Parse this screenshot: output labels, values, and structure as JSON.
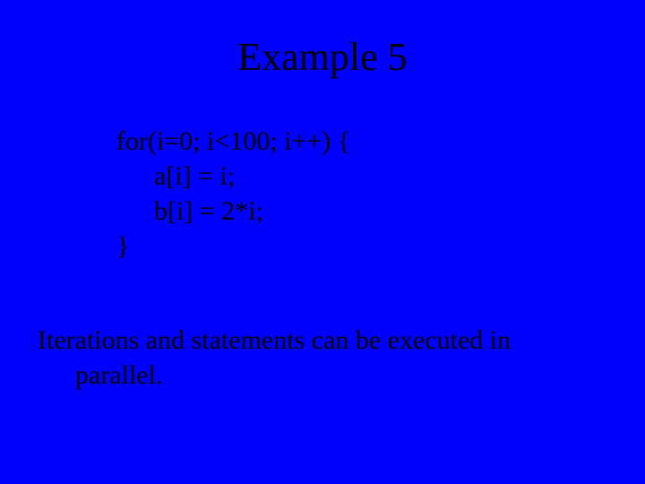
{
  "background_color": "#0000ff",
  "text_color": "#000000",
  "font_family": "Times New Roman",
  "title": {
    "text": "Example 5",
    "fontsize": 44
  },
  "code": {
    "fontsize": 30,
    "lines": [
      "for(i=0; i<100; i++) {",
      "a[i] = i;",
      "b[i] = 2*i;",
      "}"
    ]
  },
  "caption": {
    "fontsize": 30,
    "line1": "Iterations and statements can be executed in",
    "line2": "parallel."
  }
}
